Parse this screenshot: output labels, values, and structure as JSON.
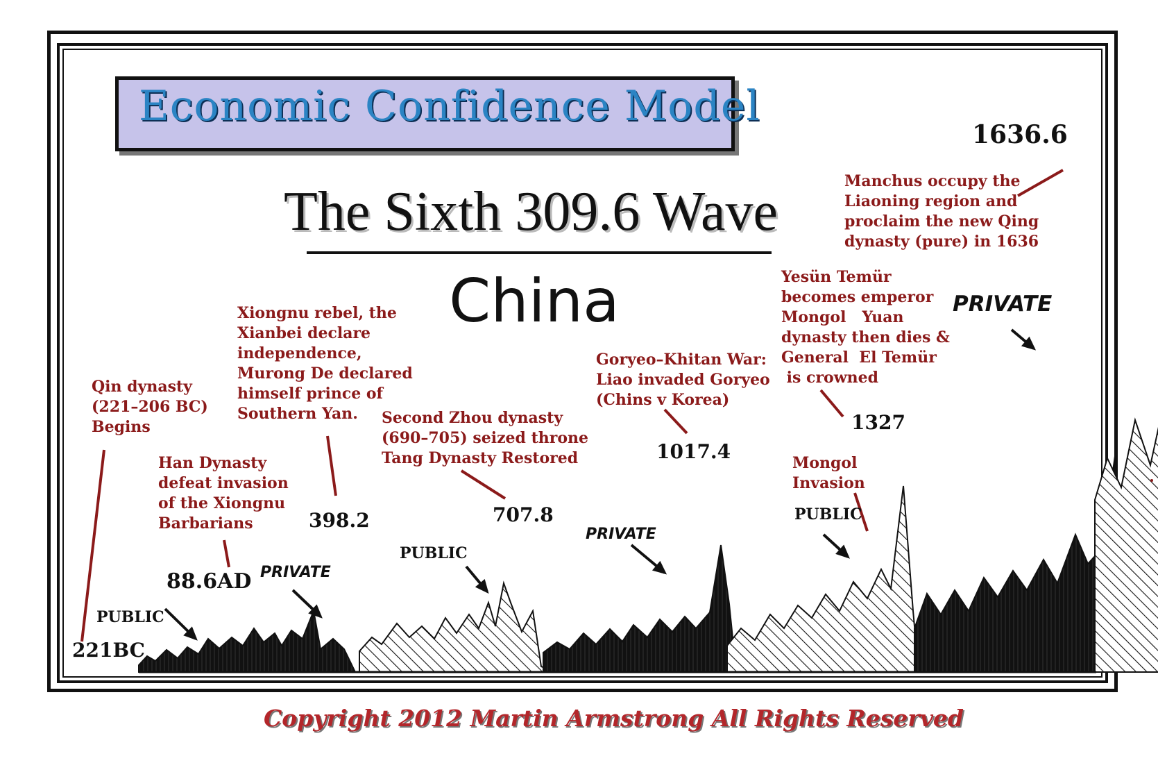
{
  "header": {
    "banner": "Economic Confidence Model",
    "wave_title": "The Sixth 309.6 Wave",
    "country": "China"
  },
  "footer": {
    "copyright": "Copyright 2012 Martin Armstrong All Rights Reserved"
  },
  "colors": {
    "annotation": "#8b1a1a",
    "banner_fill": "#c6c3ea",
    "banner_text": "#2b84c4",
    "copyright": "#b3262a"
  },
  "chart_data": {
    "type": "area",
    "title": "The Sixth 309.6 Wave",
    "subtitle": "China",
    "peaks": [
      {
        "label": "221BC",
        "year": -221
      },
      {
        "label": "88.6AD",
        "year": 88.6
      },
      {
        "label": "398.2",
        "year": 398.2
      },
      {
        "label": "707.8",
        "year": 707.8
      },
      {
        "label": "1017.4",
        "year": 1017.4
      },
      {
        "label": "1327",
        "year": 1327
      },
      {
        "label": "1636.6",
        "year": 1636.6
      }
    ],
    "phases": [
      {
        "label": "PUBLIC",
        "style": "solid",
        "start": -221,
        "end": 88.6
      },
      {
        "label": "PRIVATE",
        "style": "hatched",
        "start": 88.6,
        "end": 398.2
      },
      {
        "label": "PUBLIC",
        "style": "solid",
        "start": 398.2,
        "end": 707.8
      },
      {
        "label": "PRIVATE",
        "style": "hatched",
        "start": 707.8,
        "end": 1017.4
      },
      {
        "label": "PUBLIC",
        "style": "solid",
        "start": 1017.4,
        "end": 1327
      },
      {
        "label": "PRIVATE",
        "style": "hatched",
        "start": 1327,
        "end": 1636.6
      }
    ],
    "annotations": [
      "Qin dynasty\n(221–206 BC)\nBegins",
      "Han Dynasty\ndefeat invasion\nof the Xiongnu\nBarbarians",
      "Xiongnu rebel, the\nXianbei declare\nindependence,\nMurong De declared\nhimself prince of\nSouthern Yan.",
      "Second Zhou dynasty\n(690–705) seized throne\nTang Dynasty Restored",
      "Goryeo–Khitan War:\nLiao invaded Goryeo\n(Chins v Korea)",
      "Mongol\nInvasion",
      "Yesün Temür\nbecomes emperor\nMongol   Yuan\ndynasty then dies &\nGeneral  El Temür\n is crowned",
      "Manchus occupy the\nLiaoning region and\nproclaim the new Qing\ndynasty (pure) in 1636"
    ],
    "grid": false,
    "legend": "none"
  }
}
